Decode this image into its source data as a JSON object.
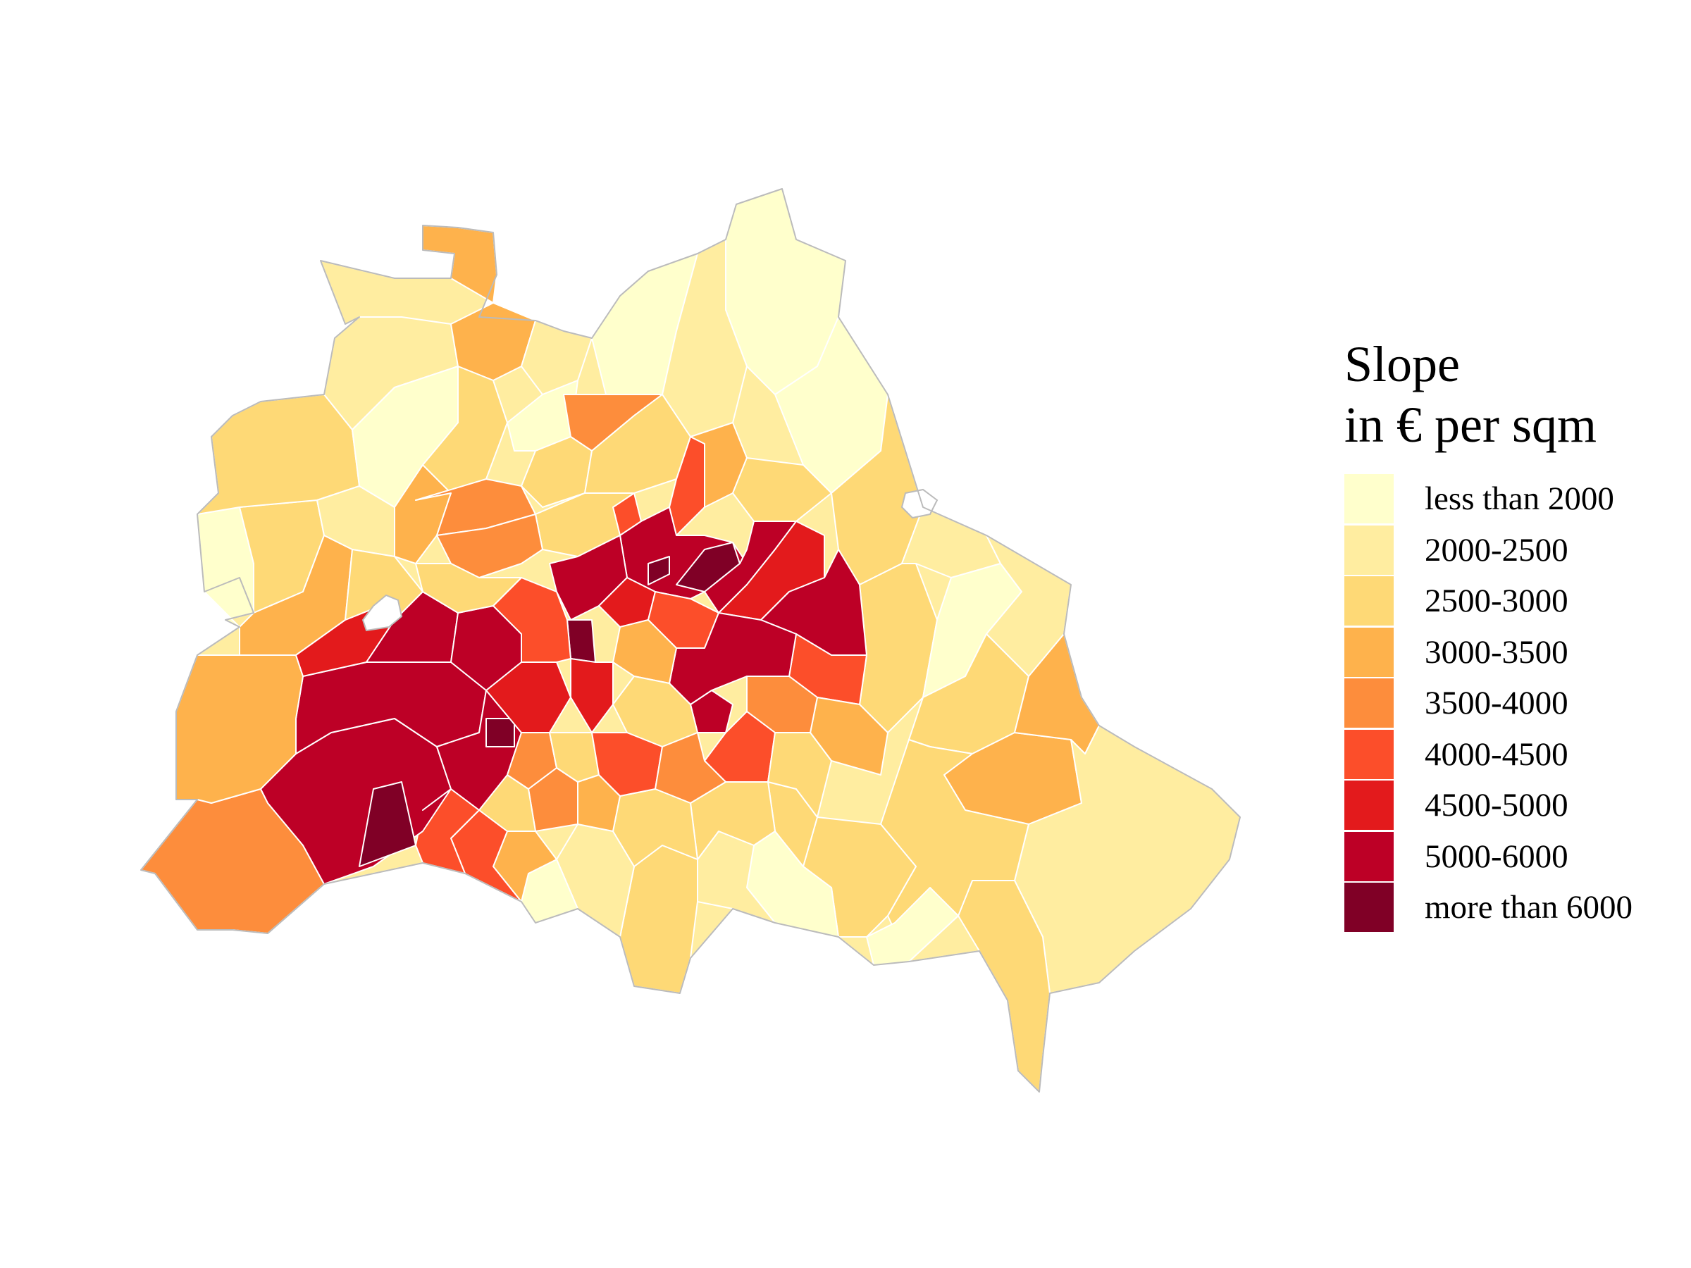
{
  "legend": {
    "title_line1": "Slope",
    "title_line2": "in € per sqm",
    "classes": [
      {
        "label": "less than 2000",
        "color": "#FFFFCC"
      },
      {
        "label": "2000-2500",
        "color": "#FFEDA0"
      },
      {
        "label": "2500-3000",
        "color": "#FED976"
      },
      {
        "label": "3000-3500",
        "color": "#FEB24C"
      },
      {
        "label": "3500-4000",
        "color": "#FD8D3C"
      },
      {
        "label": "4000-4500",
        "color": "#FC4E2A"
      },
      {
        "label": "4500-5000",
        "color": "#E31A1C"
      },
      {
        "label": "5000-6000",
        "color": "#BD0026"
      },
      {
        "label": "more than 6000",
        "color": "#800026"
      }
    ]
  },
  "map": {
    "outline_color": "#BBBBBB",
    "border_color": "#FFFFFF"
  }
}
